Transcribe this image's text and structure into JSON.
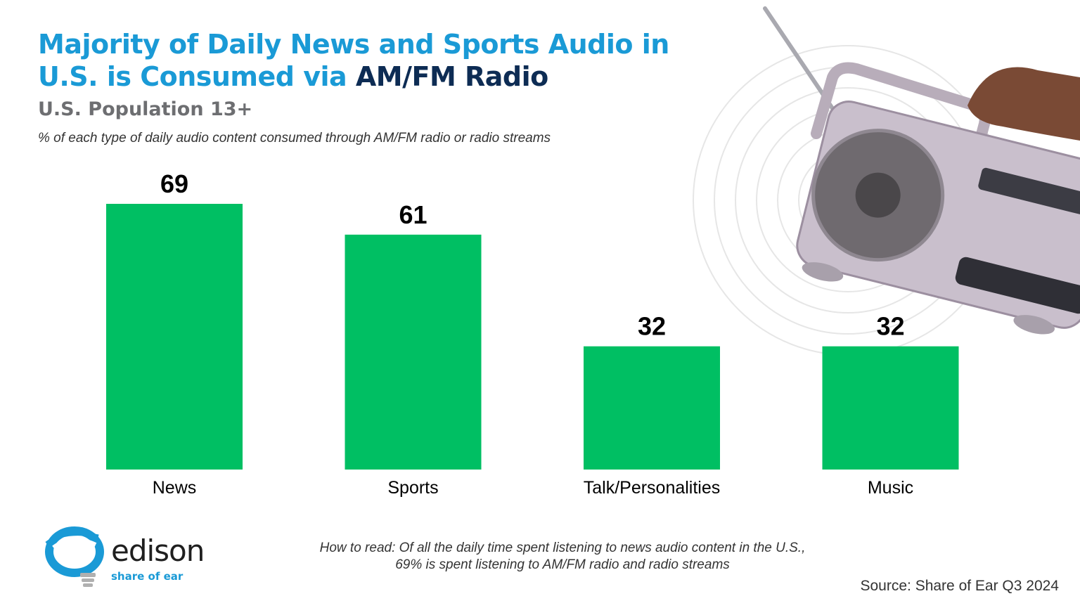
{
  "header": {
    "title_part1": "Majority of Daily News and Sports Audio in U.S. is Consumed via ",
    "title_part2": "AM/FM Radio",
    "subtitle": "U.S. Population 13+",
    "caption": "% of each type of daily audio content consumed through AM/FM radio or radio streams"
  },
  "colors": {
    "title": "#1a9ad6",
    "title_accent": "#0d2c54",
    "bar": "#00bf63",
    "text": "#000000"
  },
  "chart_data": {
    "type": "bar",
    "categories": [
      "News",
      "Sports",
      "Talk/Personalities",
      "Music"
    ],
    "values": [
      69,
      61,
      32,
      32
    ],
    "title": "Majority of Daily News and Sports Audio in U.S. is Consumed via AM/FM Radio",
    "subtitle": "U.S. Population 13+",
    "xlabel": "",
    "ylabel": "",
    "ylim": [
      0,
      69
    ],
    "grid": false,
    "legend": "none",
    "data_labels": true
  },
  "footer": {
    "how_to_read_line1": "How to read: Of all the daily time spent listening to news audio content in the U.S.,",
    "how_to_read_line2": "69% is spent listening to AM/FM radio and radio streams",
    "source": "Source: Share of Ear Q3 2024"
  },
  "logo": {
    "word": "edison",
    "tagline": "share of ear",
    "icon": "edison-bulb-icon"
  },
  "decoration": {
    "image": "portable-radio-in-hand-image"
  }
}
